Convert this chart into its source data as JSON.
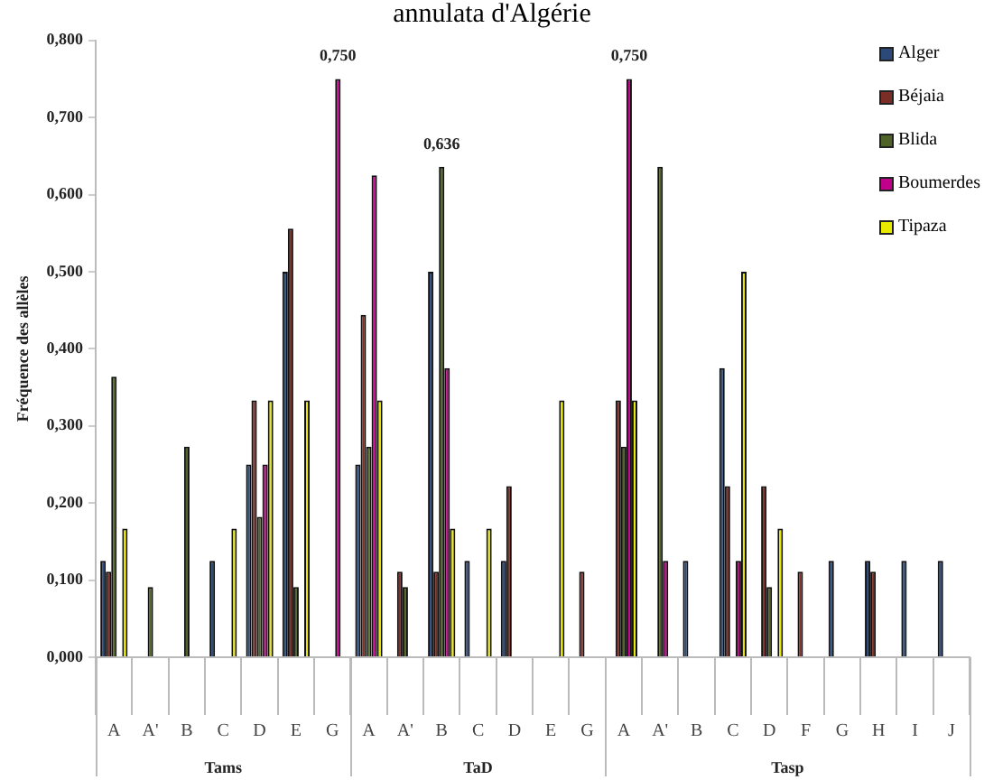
{
  "chart_data": {
    "type": "bar",
    "title": "annulata d'Algérie",
    "ylabel": "Fréquence des allèles",
    "categories": [
      "A",
      "A'",
      "B",
      "C",
      "D",
      "E",
      "G",
      "A",
      "A'",
      "B",
      "C",
      "D",
      "E",
      "G",
      "A",
      "A'",
      "B",
      "C",
      "D",
      "F",
      "G",
      "H",
      "I",
      "J"
    ],
    "annotations": [
      "Tams",
      "TaD",
      "Tasp"
    ],
    "series": [
      {
        "name": "Alger",
        "color": "#2b4a7a",
        "values": [
          0.125,
          null,
          null,
          0.125,
          0.25,
          0.5,
          null,
          0.25,
          null,
          0.5,
          0.125,
          0.125,
          null,
          null,
          null,
          null,
          0.125,
          0.375,
          null,
          null,
          0.125,
          0.125,
          0.125,
          0.125
        ]
      },
      {
        "name": "Béjaia",
        "color": "#7b2e26",
        "values": [
          0.111,
          null,
          null,
          null,
          0.333,
          0.556,
          null,
          0.444,
          0.111,
          0.111,
          null,
          0.222,
          null,
          0.111,
          0.333,
          null,
          null,
          0.222,
          0.222,
          0.111,
          null,
          0.111,
          null,
          null
        ]
      },
      {
        "name": "Blida",
        "color": "#4f6228",
        "values": [
          0.364,
          0.091,
          0.273,
          null,
          0.182,
          0.091,
          null,
          0.273,
          0.091,
          0.636,
          null,
          null,
          null,
          null,
          0.273,
          0.636,
          null,
          null,
          0.091,
          null,
          null,
          null,
          null,
          null
        ],
        "value_labels": [
          null,
          null,
          null,
          null,
          null,
          null,
          null,
          null,
          null,
          "0,636",
          null,
          null,
          null,
          null,
          null,
          null,
          null,
          null,
          null,
          null,
          null,
          null,
          null,
          null
        ]
      },
      {
        "name": "Boumerdes",
        "color": "#c0008a",
        "values": [
          null,
          null,
          null,
          null,
          0.25,
          null,
          0.75,
          0.625,
          null,
          0.375,
          null,
          null,
          null,
          null,
          0.75,
          0.125,
          null,
          0.125,
          null,
          null,
          null,
          null,
          null,
          null
        ],
        "value_labels": [
          null,
          null,
          null,
          null,
          null,
          null,
          "0,750",
          null,
          null,
          null,
          null,
          null,
          null,
          null,
          "0,750",
          null,
          null,
          null,
          null,
          null,
          null,
          null,
          null,
          null
        ]
      },
      {
        "name": "Tipaza",
        "color": "#e8e800",
        "values": [
          0.167,
          null,
          null,
          0.167,
          0.333,
          0.333,
          null,
          0.333,
          null,
          0.167,
          0.167,
          null,
          0.333,
          null,
          0.333,
          null,
          null,
          0.5,
          0.167,
          null,
          null,
          null,
          null,
          null
        ]
      }
    ],
    "ylim": [
      0,
      0.8
    ],
    "yticks": [
      {
        "value": 0,
        "label": "0,000"
      },
      {
        "value": 0.1,
        "label": "0,100"
      },
      {
        "value": 0.2,
        "label": "0,200"
      },
      {
        "value": 0.3,
        "label": "0,300"
      },
      {
        "value": 0.4,
        "label": "0,400"
      },
      {
        "value": 0.5,
        "label": "0,500"
      },
      {
        "value": 0.6,
        "label": "0,600"
      },
      {
        "value": 0.7,
        "label": "0,700"
      },
      {
        "value": 0.8,
        "label": "0,800"
      }
    ],
    "grid": false,
    "legend": "top right"
  }
}
